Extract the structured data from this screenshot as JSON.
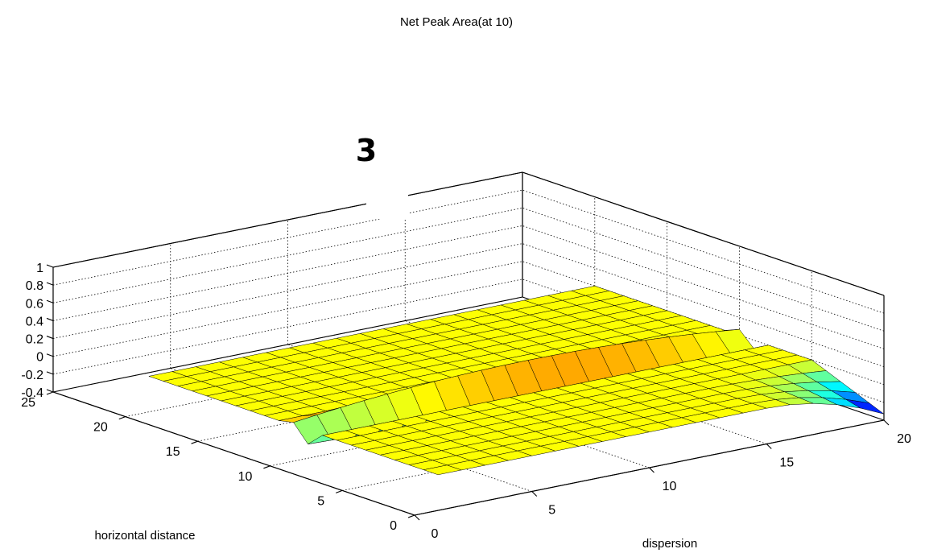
{
  "chart_data": {
    "type": "surface",
    "title": "Net Peak Area(at 10)",
    "xlabel": "dispersion",
    "ylabel": "horizontal distance",
    "zlabel": "",
    "annotation": "3",
    "xlim": [
      0,
      20
    ],
    "ylim": [
      0,
      25
    ],
    "zlim": [
      -0.4,
      1
    ],
    "x_ticks": [
      "0",
      "5",
      "10",
      "15",
      "20"
    ],
    "y_ticks": [
      "0",
      "5",
      "10",
      "15",
      "20",
      "25"
    ],
    "z_ticks": [
      "-0.4",
      "-0.2",
      "0",
      "0.2",
      "0.4",
      "0.6",
      "0.8",
      "1"
    ],
    "grid": true,
    "colormap": "jet",
    "surface": {
      "x_range": [
        1,
        20
      ],
      "y_range": [
        0,
        20
      ],
      "z_min": -0.33,
      "z_max": 0.2,
      "description_values": {
        "plateau_z": 0.0,
        "edge_drop_at_x20_y0": -0.33,
        "peak_wall_at_y10_z": 0.2,
        "trough_near_y9_z": -0.17
      }
    }
  }
}
